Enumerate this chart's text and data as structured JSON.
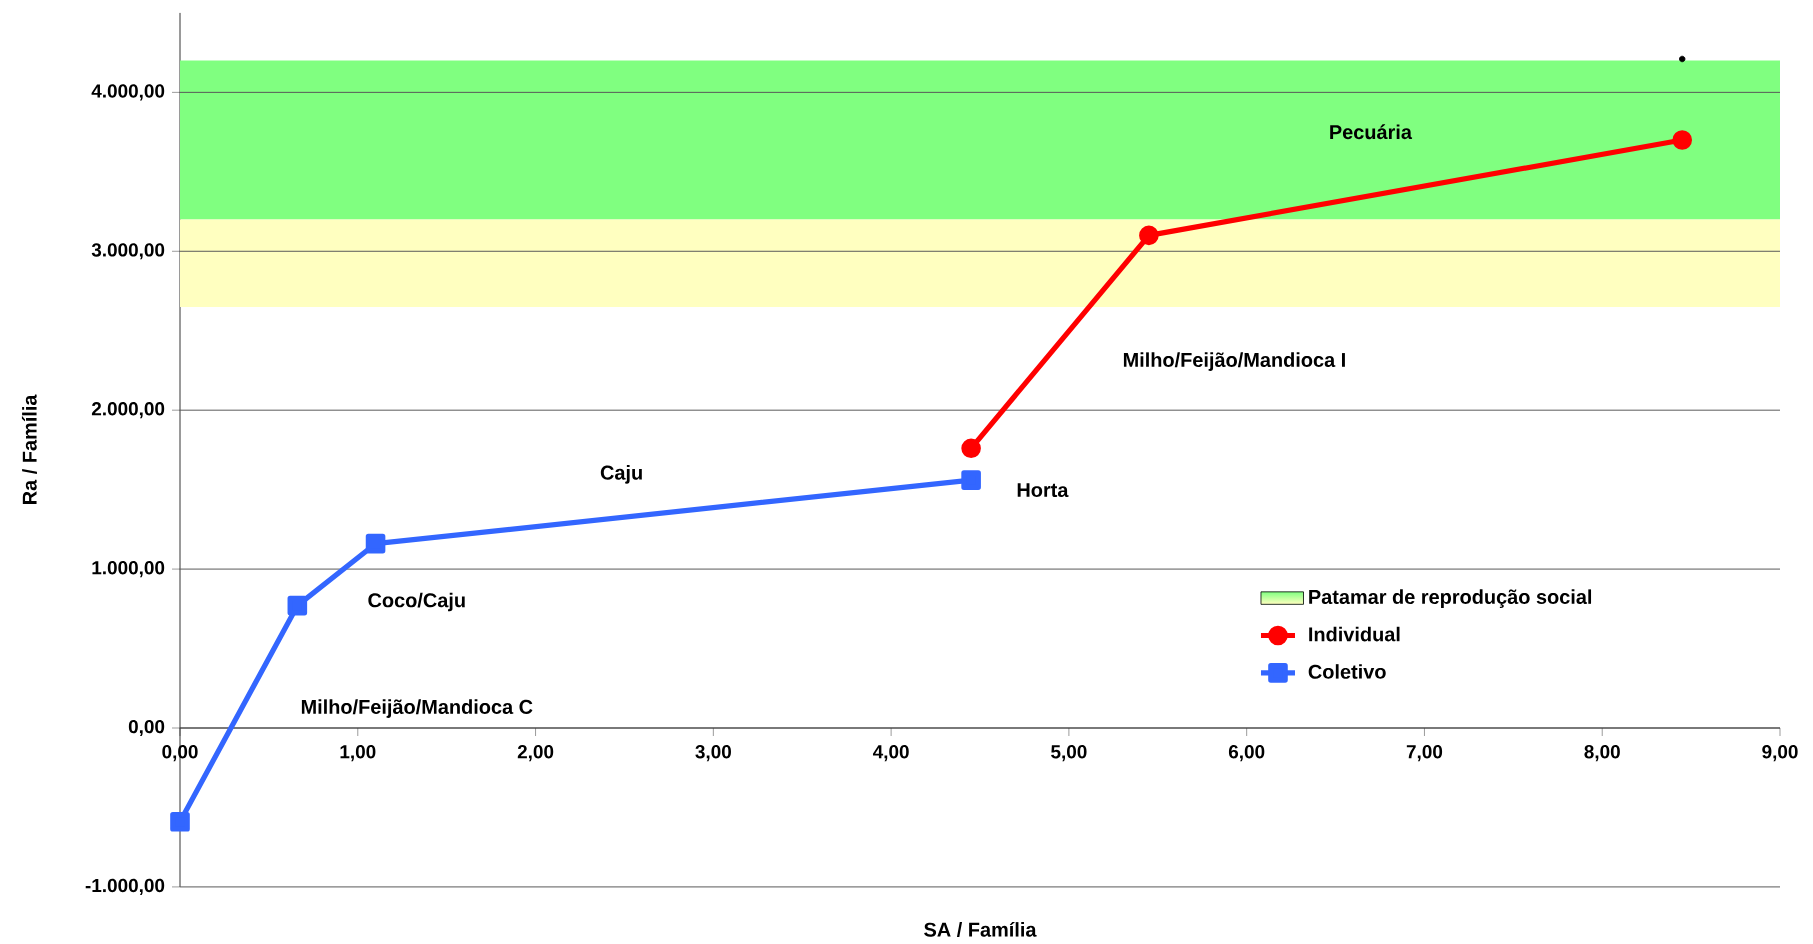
{
  "chart_data": {
    "type": "line",
    "xlabel": "SA / Família",
    "ylabel": "Ra / Família",
    "xlim": [
      0,
      9
    ],
    "ylim": [
      -1000,
      4500
    ],
    "xticks": [
      {
        "value": 0,
        "label": "0,00"
      },
      {
        "value": 1,
        "label": "1,00"
      },
      {
        "value": 2,
        "label": "2,00"
      },
      {
        "value": 3,
        "label": "3,00"
      },
      {
        "value": 4,
        "label": "4,00"
      },
      {
        "value": 5,
        "label": "5,00"
      },
      {
        "value": 6,
        "label": "6,00"
      },
      {
        "value": 7,
        "label": "7,00"
      },
      {
        "value": 8,
        "label": "8,00"
      },
      {
        "value": 9,
        "label": "9,00"
      }
    ],
    "yticks": [
      {
        "value": -1000,
        "label": "-1.000,00"
      },
      {
        "value": 0,
        "label": "0,00"
      },
      {
        "value": 1000,
        "label": "1.000,00"
      },
      {
        "value": 2000,
        "label": "2.000,00"
      },
      {
        "value": 3000,
        "label": "3.000,00"
      },
      {
        "value": 4000,
        "label": "4.000,00"
      }
    ],
    "grid": "y",
    "legend": "bottom right",
    "bands": [
      {
        "axis": "y",
        "from": 3200,
        "to": 4200,
        "color": "#80ff80",
        "label": "Patamar de reprodução social"
      },
      {
        "axis": "y",
        "from": 2650,
        "to": 3200,
        "color": "#ffffc0"
      }
    ],
    "series": [
      {
        "name": "Individual",
        "color": "#ff0000",
        "x": [
          4.45,
          5.45,
          8.45
        ],
        "values": [
          1760,
          3100,
          3700
        ],
        "marker": "circle"
      },
      {
        "name": "Coletivo",
        "color": "#3366ff",
        "x": [
          0,
          0.66,
          1.1,
          4.45
        ],
        "values": [
          -590,
          770,
          1160,
          1560
        ],
        "marker": "square"
      },
      {
        "type": "scatter",
        "color": "#000000",
        "x": [
          8.45
        ],
        "values": [
          4210
        ],
        "marker": "circle"
      }
    ],
    "annotations": [
      "Milho/Feijão/Mandioca C",
      "Coco/Caju",
      "Caju",
      "Horta",
      "Milho/Feijão/Mandioca I",
      "Pecuária"
    ]
  }
}
